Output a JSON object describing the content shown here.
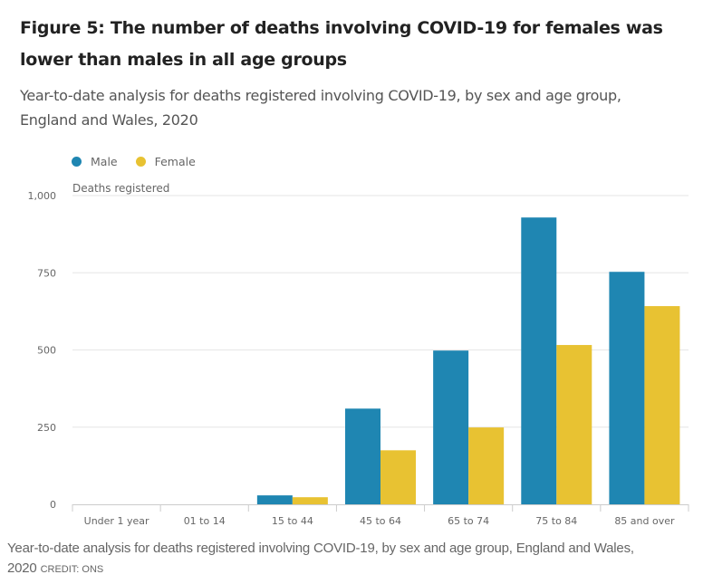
{
  "header": {
    "title": "Figure 5: The number of deaths involving COVID-19 for females was lower than males in all age groups",
    "subtitle": "Year-to-date analysis for deaths registered involving COVID-19, by sex and age group, England and Wales, 2020"
  },
  "caption": {
    "text": "Year-to-date analysis for deaths registered involving COVID-19, by sex and age group, England and Wales, 2020",
    "credit": "CREDIT: ONS"
  },
  "chart_data": {
    "type": "bar",
    "title": "Figure 5: The number of deaths involving COVID-19 for females was lower than males in all age groups",
    "subtitle": "Year-to-date analysis for deaths registered involving COVID-19, by sex and age group, England and Wales, 2020",
    "xlabel": "",
    "ylabel": "Deaths registered",
    "ylim": [
      0,
      1000
    ],
    "yticks": [
      0,
      250,
      500,
      750,
      1000
    ],
    "ytick_labels": [
      "0",
      "250",
      "500",
      "750",
      "1,000"
    ],
    "grid": true,
    "legend_position": "top-left",
    "categories": [
      "Under 1 year",
      "01 to 14",
      "15 to 44",
      "45 to 64",
      "65 to 74",
      "75 to 84",
      "85 and over"
    ],
    "series": [
      {
        "name": "Male",
        "color": "#1f86b2",
        "values": [
          0,
          0,
          29,
          310,
          498,
          929,
          753
        ]
      },
      {
        "name": "Female",
        "color": "#e8c232",
        "values": [
          0,
          0,
          23,
          175,
          249,
          516,
          642
        ]
      }
    ]
  }
}
